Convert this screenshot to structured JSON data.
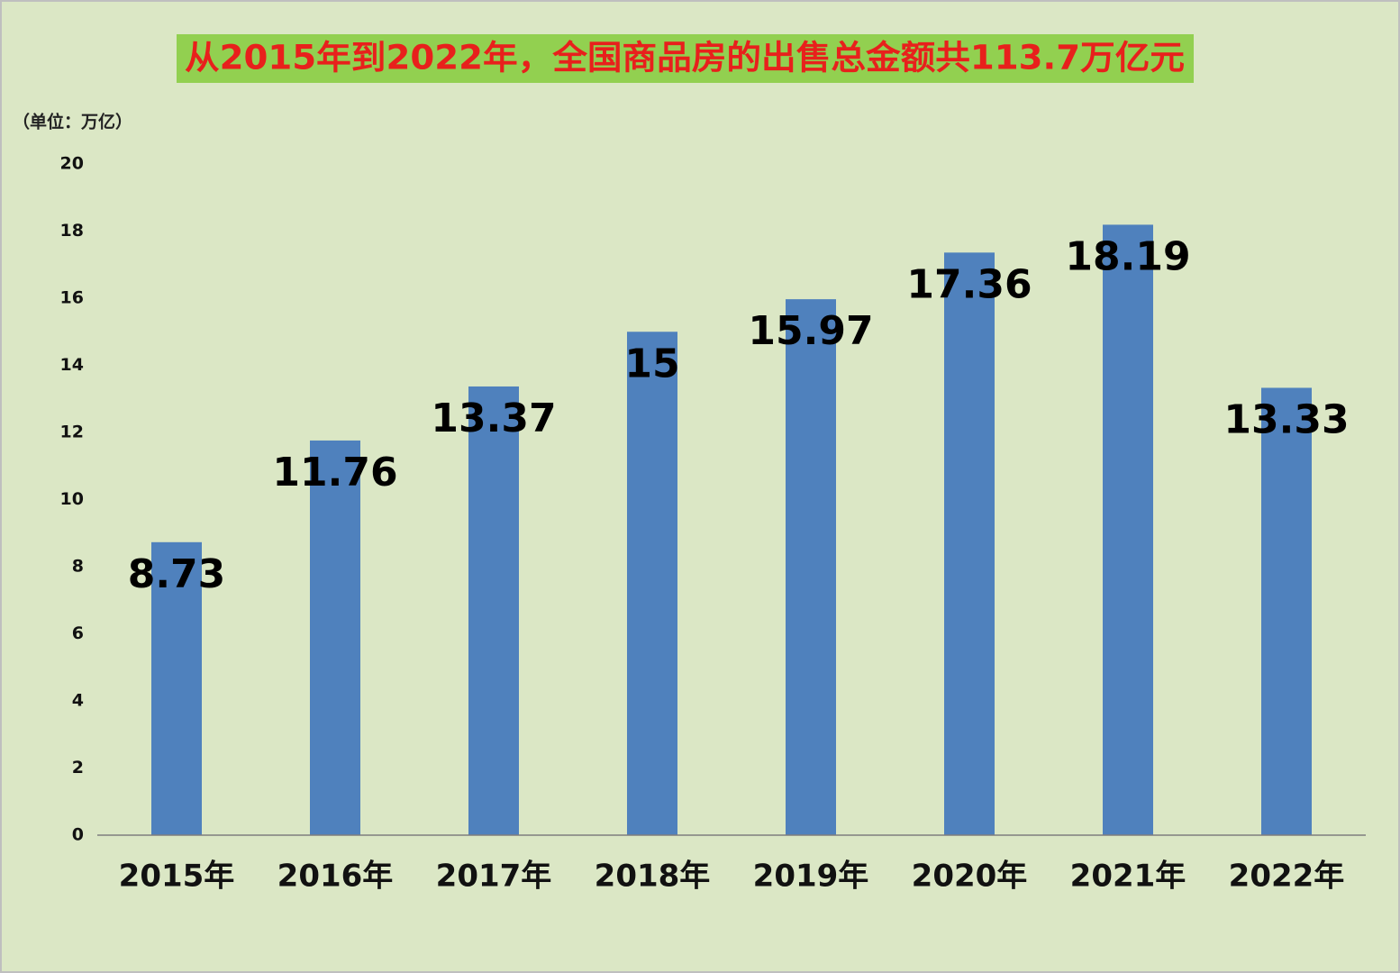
{
  "chart_data": {
    "type": "bar",
    "title": "从2015年到2022年，全国商品房的出售总金额共113.7万亿元",
    "unit_label": "（单位：万亿）",
    "categories": [
      "2015年",
      "2016年",
      "2017年",
      "2018年",
      "2019年",
      "2020年",
      "2021年",
      "2022年"
    ],
    "values": [
      8.73,
      11.76,
      13.37,
      15,
      15.97,
      17.36,
      18.19,
      13.33
    ],
    "color": "#4f81bd",
    "ylim": [
      0,
      20
    ],
    "yticks": [
      0,
      2,
      4,
      6,
      8,
      10,
      12,
      14,
      16,
      18,
      20
    ],
    "grid": false
  }
}
